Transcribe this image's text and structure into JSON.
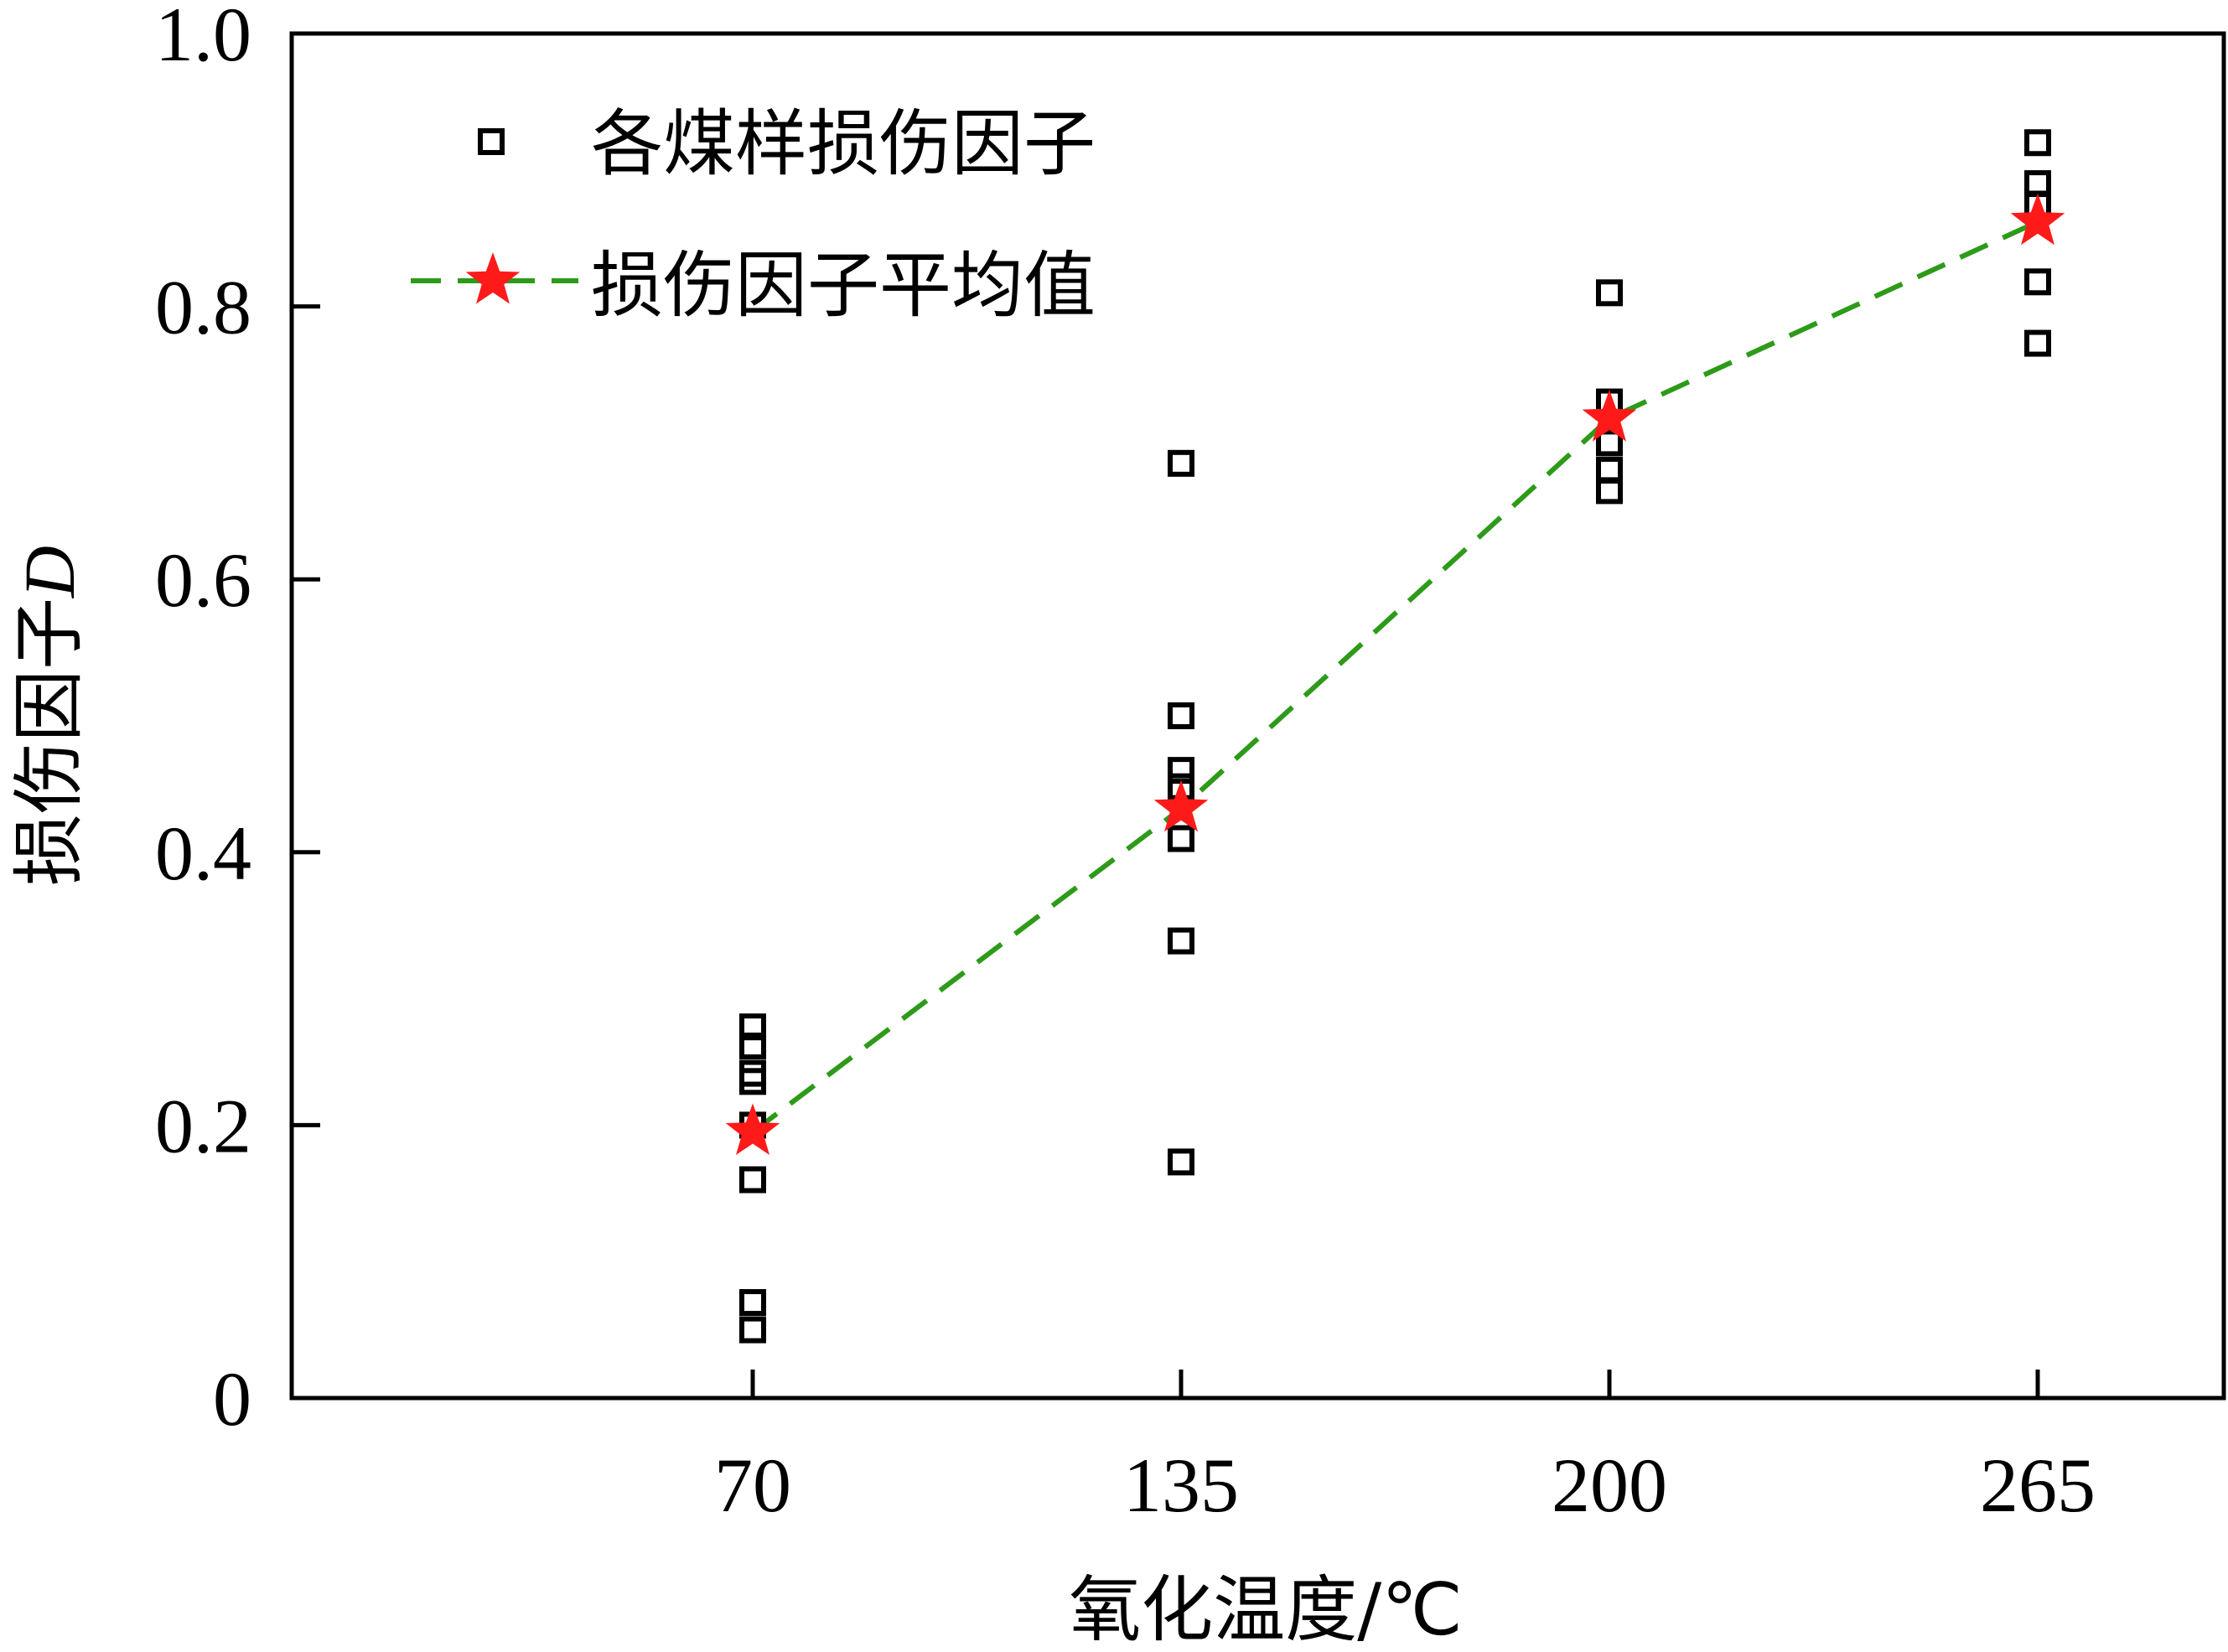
{
  "chart_data": {
    "type": "scatter",
    "x_categories": [
      "70",
      "135",
      "200",
      "265"
    ],
    "xlabel": "氧化温度/℃",
    "ylabel_prefix": "损伤因子",
    "ylabel_symbol": "D",
    "ylim": [
      0,
      1.0
    ],
    "yticks": [
      "0",
      "0.2",
      "0.4",
      "0.6",
      "0.8",
      "1.0"
    ],
    "series": [
      {
        "name": "各煤样损伤因子",
        "marker": "open-square",
        "color": "#000000",
        "points": [
          {
            "x": "70",
            "y": 0.272
          },
          {
            "x": "70",
            "y": 0.258
          },
          {
            "x": "70",
            "y": 0.238
          },
          {
            "x": "70",
            "y": 0.232
          },
          {
            "x": "70",
            "y": 0.2
          },
          {
            "x": "70",
            "y": 0.16
          },
          {
            "x": "70",
            "y": 0.07
          },
          {
            "x": "70",
            "y": 0.05
          },
          {
            "x": "135",
            "y": 0.685
          },
          {
            "x": "135",
            "y": 0.5
          },
          {
            "x": "135",
            "y": 0.46
          },
          {
            "x": "135",
            "y": 0.448
          },
          {
            "x": "135",
            "y": 0.41
          },
          {
            "x": "135",
            "y": 0.335
          },
          {
            "x": "135",
            "y": 0.173
          },
          {
            "x": "200",
            "y": 0.81
          },
          {
            "x": "200",
            "y": 0.73
          },
          {
            "x": "200",
            "y": 0.7
          },
          {
            "x": "200",
            "y": 0.68
          },
          {
            "x": "200",
            "y": 0.665
          },
          {
            "x": "265",
            "y": 0.92
          },
          {
            "x": "265",
            "y": 0.89
          },
          {
            "x": "265",
            "y": 0.875
          },
          {
            "x": "265",
            "y": 0.818
          },
          {
            "x": "265",
            "y": 0.773
          }
        ]
      },
      {
        "name": "损伤因子平均值",
        "marker": "star",
        "color": "#ff1a1a",
        "line_color": "#2e9a1a",
        "line_style": "dashed",
        "points": [
          {
            "x": "70",
            "y": 0.195
          },
          {
            "x": "135",
            "y": 0.432
          },
          {
            "x": "200",
            "y": 0.718
          },
          {
            "x": "265",
            "y": 0.862
          }
        ]
      }
    ],
    "legend_position": "top-left",
    "grid": false
  }
}
